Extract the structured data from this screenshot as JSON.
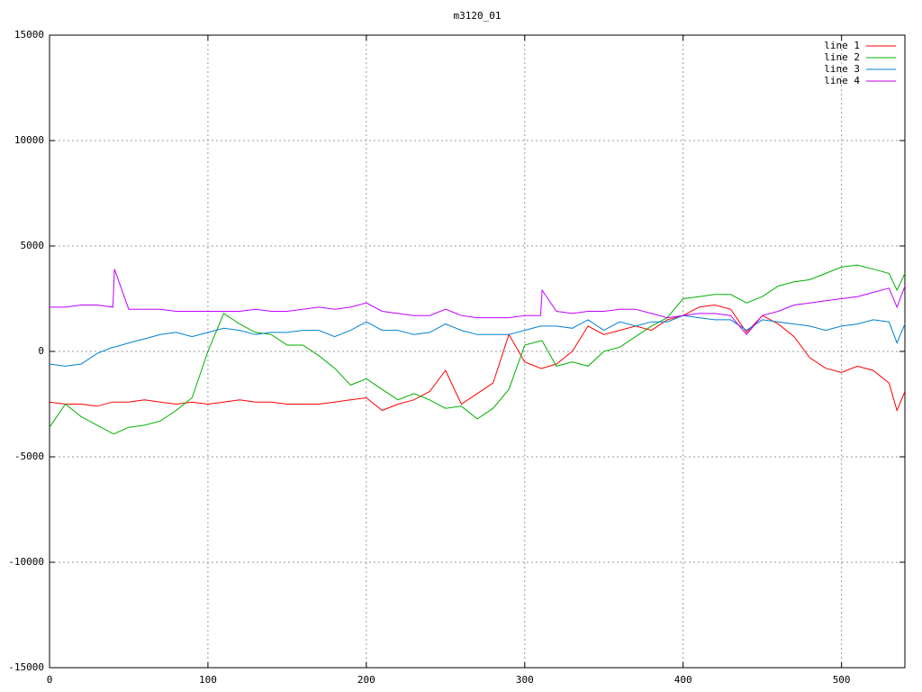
{
  "chart_data": {
    "type": "line",
    "title": "m3120_01",
    "x": [
      0,
      10,
      20,
      30,
      40,
      41,
      50,
      60,
      70,
      80,
      90,
      100,
      110,
      120,
      130,
      140,
      150,
      160,
      170,
      180,
      190,
      200,
      210,
      220,
      230,
      240,
      250,
      260,
      270,
      280,
      290,
      300,
      310,
      311,
      320,
      330,
      340,
      350,
      360,
      370,
      380,
      390,
      400,
      410,
      420,
      430,
      440,
      450,
      460,
      470,
      480,
      490,
      500,
      510,
      520,
      530,
      535,
      540
    ],
    "series": [
      {
        "name": "line 1",
        "color": "#ff0000",
        "values": [
          -2400,
          -2500,
          -2500,
          -2600,
          -2400,
          -2400,
          -2400,
          -2300,
          -2400,
          -2500,
          -2400,
          -2500,
          -2400,
          -2300,
          -2400,
          -2400,
          -2500,
          -2500,
          -2500,
          -2400,
          -2300,
          -2200,
          -2800,
          -2500,
          -2300,
          -1900,
          -900,
          -2500,
          -2000,
          -1500,
          800,
          -500,
          -800,
          -800,
          -600,
          0,
          1200,
          800,
          1000,
          1200,
          1000,
          1500,
          1700,
          2100,
          2200,
          2000,
          900,
          1700,
          1300,
          700,
          -300,
          -800,
          -1000,
          -700,
          -900,
          -1500,
          -2800,
          -1900
        ]
      },
      {
        "name": "line 2",
        "color": "#00b000",
        "values": [
          -3600,
          -2500,
          -3100,
          -3500,
          -3900,
          -3900,
          -3600,
          -3500,
          -3300,
          -2800,
          -2200,
          0,
          1800,
          1300,
          900,
          800,
          300,
          300,
          -200,
          -800,
          -1600,
          -1300,
          -1800,
          -2300,
          -2000,
          -2300,
          -2700,
          -2600,
          -3200,
          -2700,
          -1800,
          300,
          500,
          500,
          -700,
          -500,
          -700,
          0,
          200,
          700,
          1200,
          1600,
          2500,
          2600,
          2700,
          2700,
          2300,
          2600,
          3100,
          3300,
          3400,
          3700,
          4000,
          4100,
          3900,
          3700,
          2900,
          3700
        ]
      },
      {
        "name": "line 3",
        "color": "#0080d0",
        "values": [
          -600,
          -700,
          -600,
          -100,
          200,
          200,
          400,
          600,
          800,
          900,
          700,
          900,
          1100,
          1000,
          800,
          900,
          900,
          1000,
          1000,
          700,
          1000,
          1400,
          1000,
          1000,
          800,
          900,
          1300,
          1000,
          800,
          800,
          800,
          1000,
          1200,
          1200,
          1200,
          1100,
          1500,
          1000,
          1400,
          1200,
          1400,
          1400,
          1700,
          1600,
          1500,
          1500,
          1000,
          1500,
          1400,
          1300,
          1200,
          1000,
          1200,
          1300,
          1500,
          1400,
          400,
          1300
        ]
      },
      {
        "name": "line 4",
        "color": "#c000ff",
        "values": [
          2100,
          2100,
          2200,
          2200,
          2100,
          3900,
          2000,
          2000,
          2000,
          1900,
          1900,
          1900,
          1900,
          1900,
          2000,
          1900,
          1900,
          2000,
          2100,
          2000,
          2100,
          2300,
          1900,
          1800,
          1700,
          1700,
          2000,
          1700,
          1600,
          1600,
          1600,
          1700,
          1700,
          2900,
          1900,
          1800,
          1900,
          1900,
          2000,
          2000,
          1800,
          1600,
          1700,
          1800,
          1800,
          1700,
          800,
          1700,
          1900,
          2200,
          2300,
          2400,
          2500,
          2600,
          2800,
          3000,
          2100,
          3100
        ]
      }
    ],
    "xlim": [
      0,
      540
    ],
    "xticks": [
      0,
      100,
      200,
      300,
      400,
      500
    ],
    "ylim": [
      -15000,
      15000
    ],
    "yticks": [
      -15000,
      -10000,
      -5000,
      0,
      5000,
      10000,
      15000
    ],
    "grid": true,
    "legend": "top-right"
  }
}
